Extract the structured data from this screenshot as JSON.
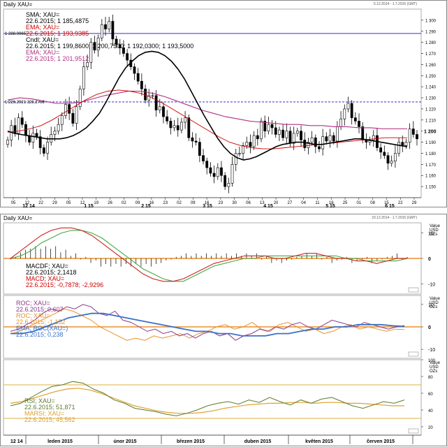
{
  "window_top": {
    "title": "Daily XAU=",
    "range": "5.12.2014 - 1.7.2015 (GMT)",
    "ref_line_1": "1 288.0965",
    "ref_line_2": "1 226.2921 228.2766",
    "last_price": "1 200",
    "legend": [
      {
        "text": "SMA; XAU=",
        "color": "#000000"
      },
      {
        "text": "22.6.2015; 1 185,4875",
        "color": "#000000"
      },
      {
        "text": "EMA; XAU=",
        "color": "#cc0000"
      },
      {
        "text": "22.6.2015; 1 193,9385",
        "color": "#cc0000"
      },
      {
        "text": "Cndl; XAU=",
        "color": "#000000"
      },
      {
        "text": "22.6.2015; 1 199,8600; 1 200,7500; 1 192,0300; 1 193,5000",
        "color": "#000000"
      },
      {
        "text": "EMA; XAU=",
        "color": "#b03080"
      },
      {
        "text": "22.6.2015; 1 201,9512",
        "color": "#b03080"
      }
    ],
    "x_ticks": [
      "12 14",
      "1 15",
      "2 15",
      "3 15",
      "4 15",
      "5 15",
      "6 15"
    ],
    "x_day_ticks": [
      "05",
      "12",
      "22",
      "29",
      "05",
      "12",
      "19",
      "26",
      "02",
      "09",
      "16",
      "23",
      "02",
      "09",
      "16",
      "23",
      "30",
      "06",
      "13",
      "20",
      "27",
      "04",
      "11",
      "18",
      "25",
      "01",
      "08",
      "15",
      "22",
      "29"
    ]
  },
  "window_bottom": {
    "title": "Daily XAU=",
    "range": "23.12.2014 - 1.7.2015 (GMT)",
    "side_label": "Value\nUSD\nOZs",
    "macd_legend": [
      {
        "text": "MACDF; XAU=",
        "color": "#000000"
      },
      {
        "text": "22.6.2015; 2,1418",
        "color": "#000000"
      },
      {
        "text": "MACD; XAU=",
        "color": "#cc0000"
      },
      {
        "text": "22.6.2015; -0,7878; -2,9296",
        "color": "#cc0000"
      }
    ],
    "roc_legend": [
      {
        "text": "ROC; XAU=",
        "color": "#8a3a8a"
      },
      {
        "text": "22.6.2015; 0,607",
        "color": "#8a3a8a"
      },
      {
        "text": "ROC; XAU=",
        "color": "#e8912a"
      },
      {
        "text": "22.6.2015; -1,152",
        "color": "#e8912a"
      },
      {
        "text": "EMA; ROC(XAU=)",
        "color": "#3a70c8"
      },
      {
        "text": "22.6.2015; 0,238",
        "color": "#3a70c8"
      }
    ],
    "rsi_legend": [
      {
        "text": "RSI; XAU=",
        "color": "#5a7a2a"
      },
      {
        "text": "22.6.2015; 51,871",
        "color": "#5a7a2a"
      },
      {
        "text": "MARSI; XAU=",
        "color": "#e0a030"
      },
      {
        "text": "22.6.2015; 45,562",
        "color": "#e0a030"
      }
    ],
    "macd_axis": [
      "10",
      "0",
      "-10"
    ],
    "roc_axis": [
      "10",
      "0",
      "-10"
    ],
    "rsi_axis": [
      "100",
      "80",
      "60",
      "40",
      "20"
    ],
    "months": [
      "12 14",
      "leden 2015",
      "únor 2015",
      "březen 2015",
      "duben 2015",
      "květen 2015",
      "červen 2015"
    ]
  },
  "colors": {
    "sma": "#000000",
    "ema_fast": "#cc0000",
    "ema_slow": "#b03080",
    "ref_line": "#1010cc",
    "macd": "#cc2222",
    "macd_signal": "#44aa44",
    "roc1": "#8a3a8a",
    "roc2": "#e8912a",
    "roc_ema": "#3a70c8",
    "rsi": "#5a7a2a",
    "marsi": "#e0a030",
    "zero_band": "#e89030"
  },
  "chart_data": [
    {
      "type": "candlestick",
      "title": "Daily XAU=",
      "ylim": [
        1140,
        1310
      ],
      "y_ticks": [
        1150,
        1160,
        1170,
        1180,
        1190,
        1200,
        1210,
        1220,
        1230,
        1240,
        1250,
        1260,
        1270,
        1280,
        1290,
        1300
      ],
      "ref_lines": [
        1288,
        1226.3
      ],
      "close": [
        1192,
        1205,
        1198,
        1212,
        1206,
        1196,
        1190,
        1198,
        1195,
        1185,
        1180,
        1190,
        1197,
        1200,
        1206,
        1214,
        1224,
        1216,
        1207,
        1222,
        1238,
        1258,
        1262,
        1280,
        1273,
        1284,
        1296,
        1292,
        1299,
        1283,
        1278,
        1275,
        1270,
        1264,
        1258,
        1252,
        1245,
        1238,
        1228,
        1232,
        1232,
        1219,
        1222,
        1213,
        1209,
        1203,
        1205,
        1201,
        1208,
        1212,
        1194,
        1191,
        1190,
        1178,
        1173,
        1167,
        1162,
        1159,
        1167,
        1160,
        1150,
        1153,
        1170,
        1180,
        1180,
        1187,
        1190,
        1186,
        1196,
        1193,
        1209,
        1200,
        1206,
        1203,
        1197,
        1201,
        1194,
        1200,
        1189,
        1198,
        1200,
        1192,
        1185,
        1190,
        1194,
        1186,
        1184,
        1195,
        1191,
        1196,
        1191,
        1204,
        1211,
        1220,
        1225,
        1212,
        1209,
        1204,
        1192,
        1190,
        1192,
        1196,
        1185,
        1181,
        1178,
        1171,
        1173,
        1180,
        1190,
        1187,
        1190,
        1202,
        1197,
        1193
      ],
      "sma": [
        1200,
        1198,
        1197,
        1196,
        1195,
        1194,
        1193,
        1193,
        1193,
        1194,
        1196,
        1199,
        1203,
        1209,
        1216,
        1226,
        1237,
        1248,
        1257,
        1263,
        1268,
        1271,
        1272,
        1271,
        1268,
        1263,
        1256,
        1247,
        1236,
        1225,
        1214,
        1204,
        1194,
        1186,
        1180,
        1176,
        1174,
        1175,
        1177,
        1180,
        1183,
        1186,
        1188,
        1189,
        1190,
        1190,
        1189,
        1188,
        1188,
        1189,
        1190,
        1191,
        1192,
        1193,
        1193,
        1192,
        1191,
        1190,
        1189,
        1188,
        1187,
        1186
      ],
      "ema_fast": [
        1199,
        1200,
        1202,
        1205,
        1210,
        1216,
        1222,
        1228,
        1233,
        1236,
        1237,
        1236,
        1234,
        1230,
        1225,
        1219,
        1213,
        1207,
        1201,
        1195,
        1190,
        1187,
        1185,
        1184,
        1184,
        1185,
        1186,
        1187,
        1188,
        1189,
        1190,
        1191,
        1192,
        1193,
        1194,
        1194,
        1194
      ],
      "ema_slow": [
        1228,
        1230,
        1229,
        1227,
        1225,
        1225,
        1226,
        1229,
        1232,
        1234,
        1236,
        1236,
        1234,
        1231,
        1227,
        1223,
        1219,
        1216,
        1213,
        1211,
        1209,
        1208,
        1207,
        1206,
        1206,
        1205,
        1205,
        1204,
        1204,
        1203,
        1203,
        1202,
        1202,
        1202
      ]
    },
    {
      "type": "line",
      "title": "MACD",
      "ylim": [
        -14,
        14
      ],
      "series": [
        {
          "name": "MACD; XAU=",
          "values": [
            0,
            3,
            6,
            9,
            11,
            12,
            12,
            11,
            9,
            6,
            3,
            0,
            -3,
            -6,
            -8,
            -9,
            -9,
            -8,
            -6,
            -4,
            -2,
            -1,
            0,
            1,
            1,
            1,
            0,
            0,
            1,
            2,
            2,
            1,
            0,
            0,
            -1,
            -1,
            -2,
            -1,
            0,
            0
          ]
        },
        {
          "name": "MACDF; XAU=",
          "values": [
            0,
            1,
            3,
            6,
            8,
            10,
            11,
            11,
            10,
            8,
            5,
            2,
            -1,
            -4,
            -6,
            -8,
            -9,
            -9,
            -7,
            -5,
            -3,
            -2,
            -1,
            0,
            0,
            1,
            1,
            1,
            1,
            1,
            1,
            1,
            1,
            0,
            0,
            -1,
            -1,
            -1,
            -1,
            0
          ]
        }
      ]
    },
    {
      "type": "line",
      "title": "ROC",
      "ylim": [
        -14,
        14
      ],
      "series": [
        {
          "name": "ROC; XAU=",
          "values": [
            -2,
            -1,
            1,
            3,
            6,
            8,
            7,
            9,
            8,
            10,
            9,
            6,
            5,
            7,
            3,
            2,
            0,
            -2,
            -1,
            -3,
            -2,
            -4,
            -3,
            -5,
            -3,
            -2,
            -4,
            -3,
            -6,
            -4,
            -3,
            -1,
            -2,
            0,
            -1,
            1,
            2,
            0,
            -1,
            1,
            3,
            2,
            1,
            0,
            2,
            1,
            0,
            -1,
            0,
            0.6
          ]
        },
        {
          "name": "ROC; XAU=",
          "values": [
            -3,
            -2,
            0,
            2,
            4,
            6,
            8,
            7,
            5,
            3,
            0,
            -2,
            -4,
            -6,
            -5,
            -6,
            -4,
            -5,
            -4,
            -3,
            -5,
            -3,
            -2,
            0,
            1,
            -1,
            0,
            2,
            -1,
            -2,
            1,
            2,
            0,
            -2,
            -1,
            -3,
            -2,
            0,
            1,
            -1,
            0,
            -1,
            -2,
            -1,
            -1.2
          ]
        },
        {
          "name": "EMA; ROC(XAU=)",
          "values": [
            -3,
            -3,
            -2,
            0,
            2,
            4,
            5,
            6,
            6,
            5,
            4,
            3,
            2,
            1,
            0,
            -1,
            -2,
            -2,
            -3,
            -3,
            -4,
            -4,
            -4,
            -3,
            -3,
            -2,
            -1,
            -1,
            0,
            0,
            1,
            1,
            1,
            0.5,
            0.2
          ]
        }
      ]
    },
    {
      "type": "line",
      "title": "RSI",
      "ylim": [
        10,
        100
      ],
      "ref_lines": [
        70,
        30
      ],
      "series": [
        {
          "name": "RSI; XAU=",
          "values": [
            45,
            48,
            55,
            62,
            68,
            70,
            74,
            72,
            65,
            60,
            52,
            48,
            42,
            40,
            38,
            35,
            33,
            36,
            40,
            45,
            48,
            50,
            47,
            52,
            49,
            55,
            50,
            46,
            52,
            48,
            53,
            55,
            50,
            45,
            42,
            46,
            50,
            48,
            52
          ]
        },
        {
          "name": "MARSI; XAU=",
          "values": [
            48,
            50,
            54,
            58,
            62,
            65,
            66,
            64,
            60,
            55,
            50,
            45,
            42,
            39,
            37,
            36,
            36,
            37,
            39,
            42,
            44,
            46,
            47,
            48,
            48,
            49,
            49,
            48,
            49,
            49,
            48,
            48,
            47,
            46,
            45,
            45
          ]
        }
      ]
    }
  ]
}
